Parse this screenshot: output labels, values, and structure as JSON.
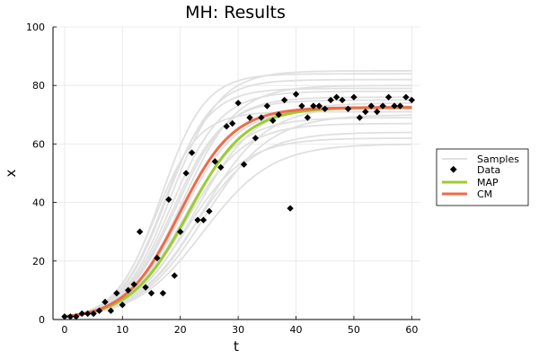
{
  "chart_data": {
    "type": "line",
    "title": "MH: Results",
    "xlabel": "t",
    "ylabel": "x",
    "xlim": [
      -2,
      61.5
    ],
    "ylim": [
      0,
      100
    ],
    "xticks": [
      0,
      10,
      20,
      30,
      40,
      50,
      60
    ],
    "yticks": [
      0,
      20,
      40,
      60,
      80,
      100
    ],
    "grid": true,
    "legend_position": "right",
    "legend": [
      "Samples",
      "Data",
      "MAP",
      "CM"
    ],
    "colors": {
      "samples": "#e0e0e0",
      "data": "#000000",
      "map": "#9acd32",
      "cm": "#f06a4a"
    },
    "samples_model": "logistic",
    "samples_x0": 1,
    "samples_params": [
      {
        "r": 0.17,
        "K": 60
      },
      {
        "r": 0.185,
        "K": 64
      },
      {
        "r": 0.2,
        "K": 67
      },
      {
        "r": 0.175,
        "K": 70
      },
      {
        "r": 0.21,
        "K": 72
      },
      {
        "r": 0.19,
        "K": 74
      },
      {
        "r": 0.225,
        "K": 76
      },
      {
        "r": 0.235,
        "K": 78
      },
      {
        "r": 0.215,
        "K": 80
      },
      {
        "r": 0.25,
        "K": 82
      },
      {
        "r": 0.265,
        "K": 84
      },
      {
        "r": 0.24,
        "K": 85
      },
      {
        "r": 0.205,
        "K": 69
      },
      {
        "r": 0.195,
        "K": 62
      },
      {
        "r": 0.23,
        "K": 75
      },
      {
        "r": 0.255,
        "K": 79
      },
      {
        "r": 0.18,
        "K": 73
      },
      {
        "r": 0.27,
        "K": 71
      }
    ],
    "series": [
      {
        "name": "Data",
        "style": "scatter",
        "x": [
          0,
          1,
          2,
          3,
          4,
          5,
          6,
          7,
          8,
          9,
          10,
          11,
          12,
          13,
          14,
          15,
          16,
          17,
          18,
          19,
          20,
          21,
          22,
          23,
          24,
          25,
          26,
          27,
          28,
          29,
          30,
          31,
          32,
          33,
          34,
          35,
          36,
          37,
          38,
          39,
          40,
          41,
          42,
          43,
          44,
          45,
          46,
          47,
          48,
          49,
          50,
          51,
          52,
          53,
          54,
          55,
          56,
          57,
          58,
          59,
          60
        ],
        "y": [
          1,
          1,
          1,
          2,
          2,
          2,
          3,
          6,
          3,
          9,
          5,
          10,
          12,
          30,
          11,
          9,
          21,
          9,
          41,
          15,
          30,
          50,
          57,
          34,
          34,
          37,
          54,
          52,
          66,
          67,
          74,
          53,
          69,
          62,
          69,
          73,
          68,
          70,
          75,
          38,
          77,
          73,
          69,
          73,
          73,
          72,
          75,
          76,
          75,
          72,
          76,
          69,
          71,
          73,
          71,
          73,
          76,
          73,
          73,
          76,
          75
        ]
      },
      {
        "name": "MAP",
        "style": "line",
        "model": "logistic",
        "params": {
          "r": 0.2,
          "K": 72.5,
          "x0": 1
        },
        "x_range": [
          0,
          60
        ]
      },
      {
        "name": "CM",
        "style": "line",
        "model": "logistic",
        "params": {
          "r": 0.215,
          "K": 72.5,
          "x0": 1
        },
        "x_range": [
          0,
          60
        ]
      }
    ]
  }
}
